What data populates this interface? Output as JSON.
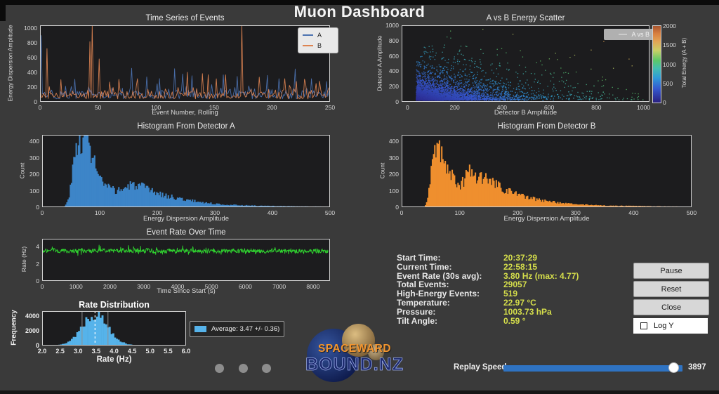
{
  "app": {
    "title": "Muon Dashboard"
  },
  "chart_data": [
    {
      "id": "ts",
      "type": "line",
      "title": "Time Series of Events",
      "xlabel": "Event Number, Rolling",
      "ylabel": "Energy Dispersion Amplitude",
      "xlim": [
        0,
        250
      ],
      "ylim": [
        0,
        1040
      ],
      "n": 250,
      "xticks": [
        [
          0,
          "0"
        ],
        [
          50,
          "50"
        ],
        [
          100,
          "100"
        ],
        [
          150,
          "150"
        ],
        [
          200,
          "200"
        ],
        [
          250,
          "250"
        ]
      ],
      "yticks": [
        [
          0,
          "0"
        ],
        [
          200,
          "200"
        ],
        [
          400,
          "400"
        ],
        [
          600,
          "600"
        ],
        [
          800,
          "800"
        ],
        [
          1000,
          "1000"
        ]
      ],
      "series": [
        {
          "name": "A",
          "color": "#4c72b0",
          "seed": 11,
          "noise": 72,
          "spikes": [
            [
              1,
              870
            ],
            [
              30,
              300
            ],
            [
              79,
              460
            ],
            [
              92,
              330
            ],
            [
              103,
              330
            ],
            [
              116,
              455
            ],
            [
              123,
              380
            ],
            [
              131,
              340
            ],
            [
              158,
              360
            ],
            [
              170,
              330
            ],
            [
              196,
              370
            ],
            [
              206,
              330
            ],
            [
              220,
              455
            ],
            [
              234,
              310
            ],
            [
              247,
              280
            ]
          ]
        },
        {
          "name": "B",
          "color": "#dd8452",
          "seed": 23,
          "noise": 72,
          "spikes": [
            [
              6,
              700
            ],
            [
              18,
              300
            ],
            [
              43,
              850
            ],
            [
              45,
              1040
            ],
            [
              51,
              600
            ],
            [
              60,
              280
            ],
            [
              68,
              310
            ],
            [
              84,
              300
            ],
            [
              127,
              400
            ],
            [
              140,
              370
            ],
            [
              145,
              385
            ],
            [
              152,
              300
            ],
            [
              160,
              350
            ],
            [
              174,
              1040
            ],
            [
              189,
              320
            ],
            [
              211,
              300
            ],
            [
              228,
              300
            ],
            [
              241,
              280
            ]
          ]
        }
      ]
    },
    {
      "id": "scatter",
      "type": "scatter",
      "title": "A vs B Energy Scatter",
      "xlabel": "Detector B Amplitude",
      "ylabel": "Detector A Amplitude",
      "legend": "A vs B",
      "xlim": [
        -25,
        1025
      ],
      "ylim": [
        0,
        1000
      ],
      "xticks": [
        [
          0,
          "0"
        ],
        [
          200,
          "200"
        ],
        [
          400,
          "400"
        ],
        [
          600,
          "600"
        ],
        [
          800,
          "800"
        ],
        [
          1000,
          "1000"
        ]
      ],
      "yticks": [
        [
          0,
          "0"
        ],
        [
          200,
          "200"
        ],
        [
          400,
          "400"
        ],
        [
          600,
          "600"
        ],
        [
          800,
          "800"
        ],
        [
          1000,
          "1000"
        ]
      ],
      "seed": 5,
      "n_core": 2400,
      "core": {
        "x0": 35,
        "xs": 95,
        "y0": 25,
        "ys": 80
      },
      "n_spread": 1500,
      "spread": {
        "x0": 35,
        "xs": 230,
        "y0": 25,
        "ys": 170
      },
      "n_band": 700,
      "band": {
        "x0": 35,
        "xs": 240,
        "y0": 28,
        "ys": 35
      },
      "colorbar": {
        "label": "Total Energy (A + B)",
        "max": 2000,
        "ticks": [
          [
            0,
            "0"
          ],
          [
            500,
            "500"
          ],
          [
            1000,
            "1000"
          ],
          [
            1500,
            "1500"
          ],
          [
            2000,
            "2000"
          ]
        ],
        "stops": [
          [
            0,
            "#2a2080"
          ],
          [
            0.18,
            "#3558cf"
          ],
          [
            0.32,
            "#2f9ad8"
          ],
          [
            0.45,
            "#44bfae"
          ],
          [
            0.55,
            "#5cc768"
          ],
          [
            0.68,
            "#c9cf66"
          ],
          [
            0.8,
            "#e3a455"
          ],
          [
            0.9,
            "#d87f40"
          ],
          [
            1,
            "#a8552e"
          ]
        ]
      }
    },
    {
      "id": "histA",
      "type": "hist",
      "title": "Histogram From Detector A",
      "xlabel": "Energy Dispersion Amplitude",
      "ylabel": "Count",
      "color": "#3d85c8",
      "seed": 3,
      "bins": 250,
      "xlim": [
        0,
        500
      ],
      "ylim": [
        0,
        440
      ],
      "xticks": [
        [
          0,
          "0"
        ],
        [
          100,
          "100"
        ],
        [
          200,
          "200"
        ],
        [
          300,
          "300"
        ],
        [
          400,
          "400"
        ],
        [
          500,
          "500"
        ]
      ],
      "yticks": [
        [
          0,
          "0"
        ],
        [
          100,
          "100"
        ],
        [
          200,
          "200"
        ],
        [
          300,
          "300"
        ],
        [
          400,
          "400"
        ]
      ],
      "envelope": [
        [
          38,
          0
        ],
        [
          44,
          30
        ],
        [
          48,
          90
        ],
        [
          52,
          180
        ],
        [
          56,
          290
        ],
        [
          60,
          360
        ],
        [
          64,
          400
        ],
        [
          68,
          420
        ],
        [
          72,
          415
        ],
        [
          76,
          400
        ],
        [
          80,
          375
        ],
        [
          84,
          340
        ],
        [
          88,
          300
        ],
        [
          92,
          250
        ],
        [
          96,
          205
        ],
        [
          100,
          170
        ],
        [
          105,
          140
        ],
        [
          110,
          125
        ],
        [
          115,
          112
        ],
        [
          120,
          105
        ],
        [
          125,
          100
        ],
        [
          130,
          100
        ],
        [
          135,
          102
        ],
        [
          140,
          108
        ],
        [
          145,
          115
        ],
        [
          150,
          122
        ],
        [
          155,
          128
        ],
        [
          160,
          132
        ],
        [
          165,
          128
        ],
        [
          170,
          122
        ],
        [
          175,
          115
        ],
        [
          180,
          108
        ],
        [
          185,
          100
        ],
        [
          190,
          94
        ],
        [
          195,
          88
        ],
        [
          200,
          83
        ],
        [
          210,
          72
        ],
        [
          220,
          64
        ],
        [
          230,
          56
        ],
        [
          240,
          50
        ],
        [
          250,
          44
        ],
        [
          260,
          38
        ],
        [
          270,
          33
        ],
        [
          280,
          28
        ],
        [
          290,
          24
        ],
        [
          300,
          20
        ],
        [
          320,
          15
        ],
        [
          340,
          12
        ],
        [
          360,
          10
        ],
        [
          380,
          8
        ],
        [
          400,
          7
        ],
        [
          420,
          6
        ],
        [
          440,
          5
        ],
        [
          460,
          4
        ],
        [
          480,
          4
        ],
        [
          500,
          3
        ]
      ]
    },
    {
      "id": "histB",
      "type": "hist",
      "title": "Histogram From Detector B",
      "xlabel": "Energy Dispersion Amplitude",
      "ylabel": "Count",
      "color": "#ef8f2e",
      "seed": 4,
      "bins": 250,
      "xlim": [
        0,
        500
      ],
      "ylim": [
        0,
        440
      ],
      "xticks": [
        [
          0,
          "0"
        ],
        [
          100,
          "100"
        ],
        [
          200,
          "200"
        ],
        [
          300,
          "300"
        ],
        [
          400,
          "400"
        ],
        [
          500,
          "500"
        ]
      ],
      "yticks": [
        [
          0,
          "0"
        ],
        [
          100,
          "100"
        ],
        [
          200,
          "200"
        ],
        [
          300,
          "300"
        ],
        [
          400,
          "400"
        ]
      ],
      "envelope": [
        [
          40,
          0
        ],
        [
          44,
          40
        ],
        [
          48,
          120
        ],
        [
          52,
          250
        ],
        [
          56,
          370
        ],
        [
          60,
          390
        ],
        [
          64,
          360
        ],
        [
          68,
          320
        ],
        [
          72,
          290
        ],
        [
          76,
          260
        ],
        [
          80,
          230
        ],
        [
          84,
          200
        ],
        [
          88,
          175
        ],
        [
          92,
          150
        ],
        [
          96,
          135
        ],
        [
          100,
          130
        ],
        [
          104,
          140
        ],
        [
          108,
          165
        ],
        [
          112,
          190
        ],
        [
          116,
          205
        ],
        [
          120,
          200
        ],
        [
          124,
          192
        ],
        [
          128,
          185
        ],
        [
          132,
          180
        ],
        [
          136,
          178
        ],
        [
          140,
          172
        ],
        [
          144,
          165
        ],
        [
          148,
          158
        ],
        [
          152,
          150
        ],
        [
          158,
          140
        ],
        [
          164,
          128
        ],
        [
          170,
          118
        ],
        [
          176,
          108
        ],
        [
          182,
          98
        ],
        [
          188,
          90
        ],
        [
          194,
          82
        ],
        [
          200,
          75
        ],
        [
          210,
          64
        ],
        [
          220,
          55
        ],
        [
          230,
          48
        ],
        [
          240,
          42
        ],
        [
          250,
          36
        ],
        [
          260,
          31
        ],
        [
          270,
          27
        ],
        [
          280,
          23
        ],
        [
          290,
          20
        ],
        [
          300,
          17
        ],
        [
          320,
          14
        ],
        [
          340,
          11
        ],
        [
          360,
          9
        ],
        [
          380,
          8
        ],
        [
          400,
          7
        ],
        [
          420,
          6
        ],
        [
          440,
          5
        ],
        [
          460,
          4
        ],
        [
          480,
          4
        ],
        [
          500,
          3
        ]
      ]
    },
    {
      "id": "rate",
      "type": "line-noise",
      "title": "Event Rate Over Time",
      "xlabel": "Time Since Start (s)",
      "ylabel": "Rate (Hz)",
      "color": "#2fd12f",
      "seed": 9,
      "n": 850,
      "mean": 3.5,
      "noise": 0.35,
      "xmax_data": 8450,
      "xlim": [
        0,
        8500
      ],
      "ylim": [
        0,
        4.9
      ],
      "xticks": [
        [
          0,
          "0"
        ],
        [
          1000,
          "1000"
        ],
        [
          2000,
          "2000"
        ],
        [
          3000,
          "3000"
        ],
        [
          4000,
          "4000"
        ],
        [
          5000,
          "5000"
        ],
        [
          6000,
          "6000"
        ],
        [
          7000,
          "7000"
        ],
        [
          8000,
          "8000"
        ]
      ],
      "yticks": [
        [
          0,
          "0"
        ],
        [
          2,
          "2"
        ],
        [
          4,
          "4"
        ]
      ]
    },
    {
      "id": "rdist",
      "type": "hist-gauss",
      "title": "Rate Distribution",
      "xlabel": "Rate (Hz)",
      "ylabel": "Frequency",
      "legend": "Average: 3.47 +/- 0.36)",
      "color": "#56b3ea",
      "seed": 13,
      "mean": 3.47,
      "sigma": 0.36,
      "peak": 4300,
      "bin_width": 0.05,
      "mean_line": 3.47,
      "sigma_lines": [
        3.11,
        3.83
      ],
      "xlim": [
        2,
        6
      ],
      "ylim": [
        0,
        4700
      ],
      "xticks": [
        [
          2,
          "2.0"
        ],
        [
          2.5,
          "2.5"
        ],
        [
          3,
          "3.0"
        ],
        [
          3.5,
          "3.5"
        ],
        [
          4,
          "4.0"
        ],
        [
          4.5,
          "4.5"
        ],
        [
          5,
          "5.0"
        ],
        [
          5.5,
          "5.5"
        ],
        [
          6,
          "6.0"
        ]
      ],
      "yticks": [
        [
          0,
          "0"
        ],
        [
          2000,
          "2000"
        ],
        [
          4000,
          "4000"
        ]
      ],
      "tick_bold": true
    }
  ],
  "status": {
    "rows": [
      {
        "label": "Start Time:",
        "value": "20:37:29"
      },
      {
        "label": "Current Time:",
        "value": "22:58:15"
      },
      {
        "label": "Event Rate (30s avg):",
        "value": "3.80 Hz (max: 4.77)"
      },
      {
        "label": "Total Events:",
        "value": "29057"
      },
      {
        "label": "High-Energy Events:",
        "value": "519"
      },
      {
        "label": "Temperature:",
        "value": "22.97 °C"
      },
      {
        "label": "Pressure:",
        "value": "1003.73 hPa"
      },
      {
        "label": "Tilt Angle:",
        "value": "0.59 °"
      }
    ],
    "label_color": "#e8e8e8",
    "value_color": "#d5de4b"
  },
  "buttons": {
    "pause": "Pause",
    "reset": "Reset",
    "close": "Close",
    "log_y": "Log Y"
  },
  "replay": {
    "label": "Replay Speed",
    "value": "3897"
  },
  "logo": {
    "line1": "SPACEWARD",
    "line2": "BOUND.NZ"
  },
  "colors": {
    "accent_blue": "#2f73c2",
    "status_value": "#d5de4b",
    "hist_a": "#3d85c8",
    "hist_b": "#ef8f2e",
    "rate_line": "#2fd12f",
    "rdist_bar": "#56b3ea"
  }
}
